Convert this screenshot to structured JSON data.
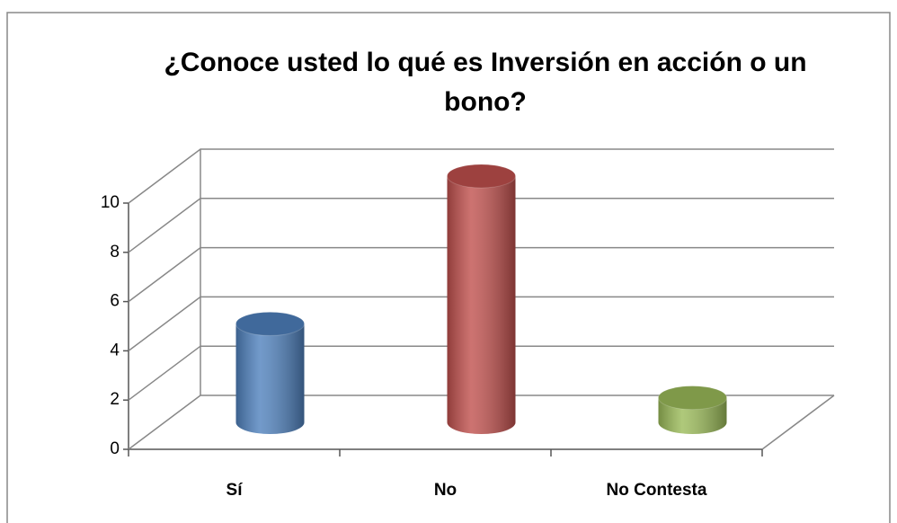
{
  "chart_data": {
    "type": "bar3d",
    "title": "¿Conoce usted lo qué es Inversión en  acción o un bono?",
    "categories": [
      "Sí",
      "No",
      "No Contesta"
    ],
    "values": [
      4,
      10,
      1
    ],
    "colors": [
      "#4f81bd",
      "#c0504d",
      "#9bbb59"
    ],
    "ylim": [
      0,
      10
    ],
    "yticks": [
      0,
      2,
      4,
      6,
      8,
      10
    ],
    "grid": true
  }
}
